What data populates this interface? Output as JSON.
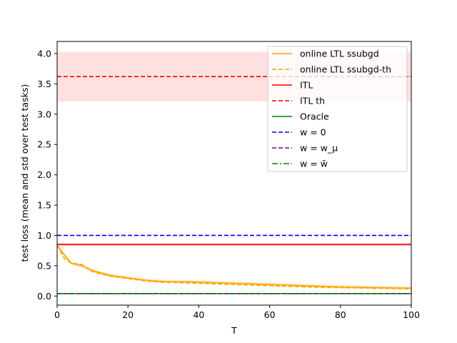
{
  "chart_data": {
    "type": "line",
    "xlabel": "T",
    "ylabel": "test loss (mean and std over test tasks)",
    "xlim": [
      0,
      100
    ],
    "ylim": [
      -0.15,
      4.2
    ],
    "xticks": [
      "0",
      "20",
      "40",
      "60",
      "80",
      "100"
    ],
    "yticks": [
      "0.0",
      "0.5",
      "1.0",
      "1.5",
      "2.0",
      "2.5",
      "3.0",
      "3.5",
      "4.0"
    ],
    "grid": false,
    "legend_position": "top-right",
    "legend": [
      {
        "label": "online LTL ssubgd",
        "color": "#ffa500",
        "dash": "solid"
      },
      {
        "label": "online LTL ssubgd-th",
        "color": "#ffa500",
        "dash": "dashed"
      },
      {
        "label": "ITL",
        "color": "#ff0000",
        "dash": "solid"
      },
      {
        "label": "ITL th",
        "color": "#ff0000",
        "dash": "dashed"
      },
      {
        "label": "Oracle",
        "color": "#008000",
        "dash": "solid"
      },
      {
        "label": "w = 0",
        "color": "#0000ff",
        "dash": "dashed"
      },
      {
        "label": "w = w_μ",
        "color": "#800080",
        "dash": "dashed"
      },
      {
        "label": "w = w̄",
        "color": "#008000",
        "dash": "dashdot"
      }
    ],
    "series": [
      {
        "name": "online LTL ssubgd",
        "color": "#ffa500",
        "dash": "solid",
        "x": [
          0,
          2,
          4,
          7,
          10,
          15,
          20,
          25,
          30,
          40,
          50,
          60,
          70,
          80,
          90,
          100
        ],
        "y": [
          0.84,
          0.68,
          0.54,
          0.5,
          0.42,
          0.34,
          0.3,
          0.26,
          0.24,
          0.23,
          0.21,
          0.19,
          0.17,
          0.15,
          0.14,
          0.13
        ],
        "band": 0.03
      },
      {
        "name": "online LTL ssubgd-th",
        "color": "#ffa500",
        "dash": "dashed",
        "x": [
          0,
          2,
          4,
          7,
          10,
          15,
          20,
          25,
          30,
          40,
          50,
          60,
          70,
          80,
          90,
          100
        ],
        "y": [
          0.84,
          0.62,
          0.54,
          0.52,
          0.4,
          0.33,
          0.29,
          0.25,
          0.23,
          0.21,
          0.19,
          0.17,
          0.15,
          0.14,
          0.13,
          0.12
        ]
      },
      {
        "name": "ITL",
        "color": "#ff0000",
        "dash": "solid",
        "constant": 0.85,
        "band": 0.03
      },
      {
        "name": "ITL th",
        "color": "#ff0000",
        "dash": "dashed",
        "constant": 3.62,
        "band_low": 3.21,
        "band_high": 4.03
      },
      {
        "name": "Oracle",
        "color": "#008000",
        "dash": "solid",
        "constant": 0.04
      },
      {
        "name": "w = 0",
        "color": "#0000ff",
        "dash": "dashed",
        "constant": 1.0
      },
      {
        "name": "w = w_μ",
        "color": "#800080",
        "dash": "dashed",
        "constant": 0.04
      },
      {
        "name": "w = w̄",
        "color": "#008000",
        "dash": "dashdot",
        "constant": 0.04
      }
    ]
  }
}
